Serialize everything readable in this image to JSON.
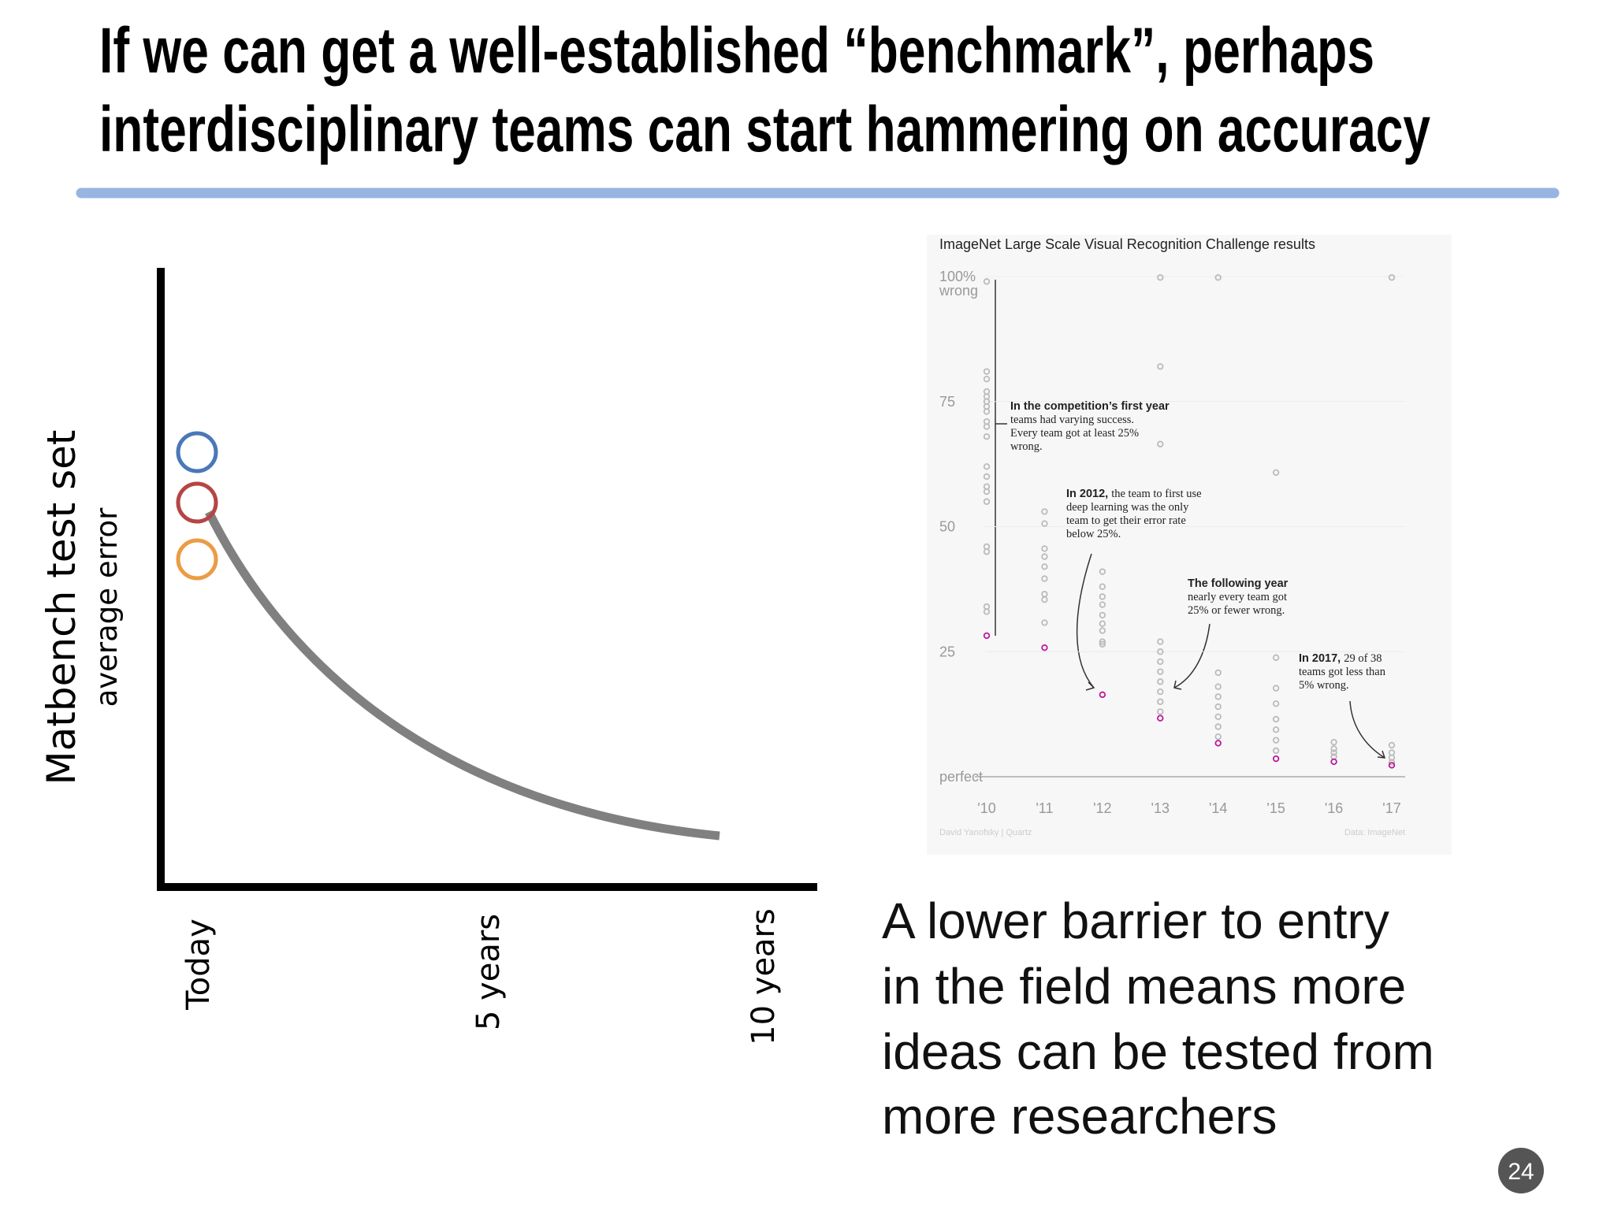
{
  "title": [
    "If we can get a well-established “benchmark”, perhaps",
    "interdisciplinary teams can start hammering on accuracy"
  ],
  "sketch": {
    "ylabel": "Matbench test set",
    "ylabel_sub": "average error",
    "xlabels": [
      "Today",
      "5 years",
      "10 years"
    ]
  },
  "chart_data": {
    "type": "scatter",
    "title": "ImageNet Large Scale Visual Recognition Challenge results",
    "ylabel": "wrong",
    "xlim": [
      2010,
      2017
    ],
    "xticks": [
      {
        "value": 2010,
        "label": "'10"
      },
      {
        "value": 2011,
        "label": "'11"
      },
      {
        "value": 2012,
        "label": "'12"
      },
      {
        "value": 2013,
        "label": "'13"
      },
      {
        "value": 2014,
        "label": "'14"
      },
      {
        "value": 2015,
        "label": "'15"
      },
      {
        "value": 2016,
        "label": "'16"
      },
      {
        "value": 2017,
        "label": "'17"
      }
    ],
    "ylim": [
      0,
      100
    ],
    "yticks": [
      {
        "value": 0,
        "label": "perfect"
      },
      25,
      50,
      75,
      {
        "value": 100,
        "label": "100%"
      }
    ],
    "series": [
      {
        "color": "#bbbbbb",
        "x": [
          2010,
          2010,
          2010,
          2010,
          2010,
          2010,
          2010,
          2010,
          2010,
          2010,
          2010,
          2010,
          2010,
          2010,
          2010,
          2010,
          2010,
          2010,
          2010,
          2010,
          2011,
          2011,
          2011,
          2011,
          2011,
          2011,
          2011,
          2011,
          2011,
          2012,
          2012,
          2012,
          2012,
          2012,
          2012,
          2012,
          2012,
          2012,
          2013,
          2013,
          2013,
          2013,
          2013,
          2013,
          2013,
          2013,
          2013,
          2013,
          2013,
          2014,
          2014,
          2014,
          2014,
          2014,
          2014,
          2014,
          2014,
          2015,
          2015,
          2015,
          2015,
          2015,
          2015,
          2015,
          2015,
          2016,
          2016,
          2016,
          2016,
          2017,
          2017,
          2017,
          2017,
          2017
        ],
        "values": [
          99,
          81,
          79.5,
          77,
          76,
          75,
          74,
          73,
          71,
          70,
          68,
          62,
          60,
          58,
          57,
          55,
          46,
          45,
          34,
          33,
          53,
          50.6,
          45.6,
          44,
          42,
          39.6,
          36.5,
          35.4,
          30.8,
          41,
          38,
          36,
          34.4,
          32.3,
          30.6,
          29.2,
          27,
          26.5,
          99.8,
          82,
          66.5,
          27,
          25,
          23,
          21,
          19,
          17,
          15,
          13,
          99.8,
          20.8,
          18,
          16,
          14,
          12,
          10,
          8,
          60.8,
          23.8,
          17.7,
          14.6,
          11.5,
          9.4,
          7.3,
          5.2,
          6.9,
          5.6,
          4.8,
          4,
          99.8,
          6.3,
          4.8,
          3.8,
          2.9
        ]
      },
      {
        "color": "#c0179c",
        "x": [
          2010,
          2011,
          2012,
          2013,
          2014,
          2015,
          2016,
          2017
        ],
        "values": [
          28.2,
          25.8,
          16.4,
          11.7,
          6.7,
          3.6,
          3.0,
          2.3
        ]
      }
    ],
    "annotations": [
      {
        "bold": "In the competition’s first year",
        "lines": [
          "teams had varying success.",
          "Every team got at least 25%",
          "wrong."
        ]
      },
      {
        "bold": "In 2012,",
        "after_bold": "the team to first use",
        "lines": [
          "deep learning was the only",
          "team to get their error rate",
          "below 25%."
        ]
      },
      {
        "bold": "The following year",
        "lines": [
          "nearly every team got",
          "25% or fewer wrong."
        ]
      },
      {
        "bold": "In 2017,",
        "after_bold": "29 of 38",
        "lines": [
          "teams got less than",
          "5% wrong."
        ]
      }
    ],
    "credit": "David Yanofsky | Quartz",
    "source": "Data: ImageNet"
  },
  "caption": [
    "A lower barrier to entry",
    "in the field means more",
    "ideas can be tested from",
    "more researchers"
  ],
  "page_number": "24"
}
